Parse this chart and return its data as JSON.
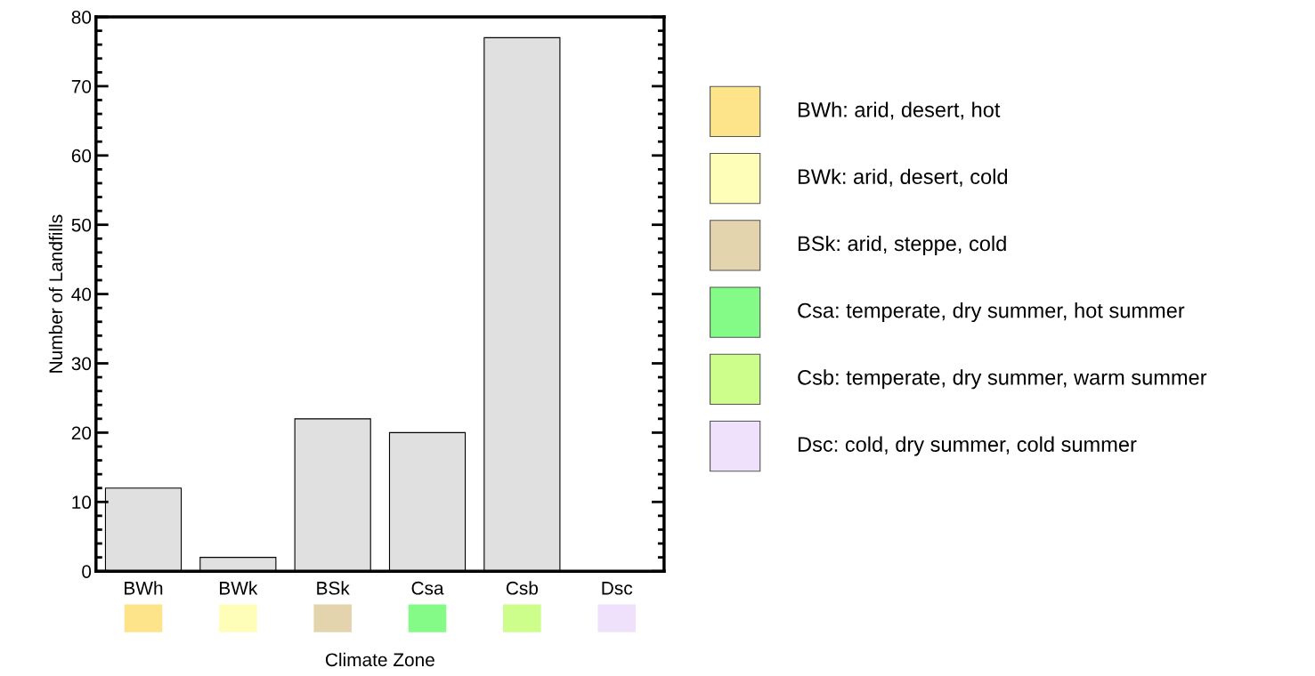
{
  "chart_data": {
    "type": "bar",
    "xlabel": "Climate Zone",
    "ylabel": "Number of Landfills",
    "categories": [
      "BWh",
      "BWk",
      "BSk",
      "Csa",
      "Csb",
      "Dsc"
    ],
    "values": [
      12,
      2,
      22,
      20,
      77,
      0
    ],
    "color": "#e0e0e0",
    "ylim": [
      0,
      80
    ],
    "yticks": [
      0,
      10,
      20,
      30,
      40,
      50,
      60,
      70,
      80
    ],
    "grid": false,
    "annotations": [
      "BWh: arid, desert, hot",
      "BWk: arid, desert, cold",
      "BSk: arid, steppe, cold",
      "Csa: temperate, dry summer, hot summer",
      "Csb: temperate, dry summer, warm summer",
      "Dsc: cold, dry summer, cold summer"
    ]
  }
}
